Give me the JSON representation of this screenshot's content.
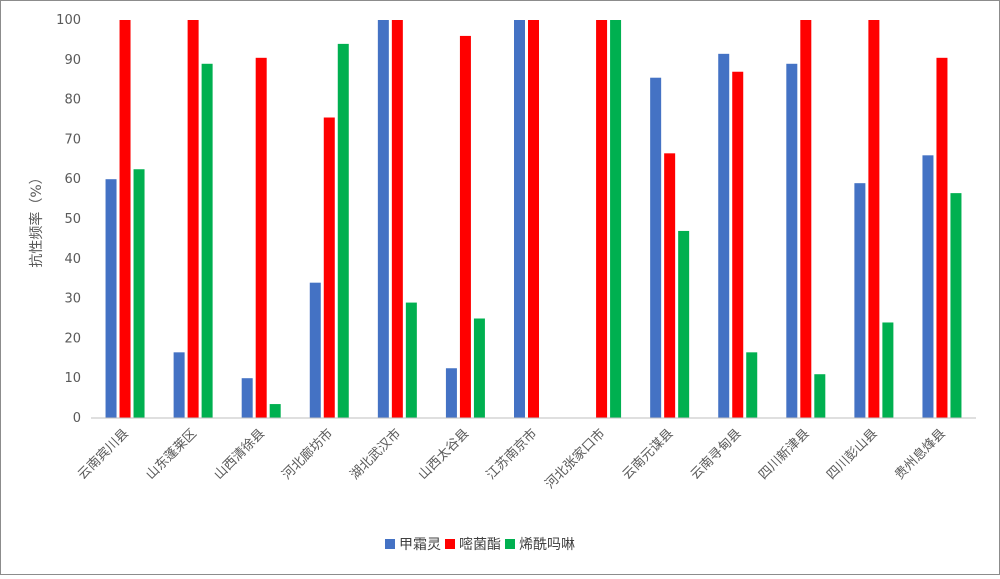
{
  "chart_data": {
    "type": "bar",
    "title": "",
    "xlabel": "",
    "ylabel": "抗性频率（%）",
    "ylim": [
      0,
      100
    ],
    "yticks": [
      0,
      10,
      20,
      30,
      40,
      50,
      60,
      70,
      80,
      90,
      100
    ],
    "grid": false,
    "legend_position": "bottom",
    "categories": [
      "云南宾川县",
      "山东蓬莱区",
      "山西清徐县",
      "河北廊坊市",
      "湖北武汉市",
      "山西太谷县",
      "江苏南京市",
      "河北张家口市",
      "云南元谋县",
      "云南寻甸县",
      "四川新津县",
      "四川彭山县",
      "贵州息烽县"
    ],
    "series": [
      {
        "name": "甲霜灵",
        "color": "#4472c4",
        "values": [
          60,
          16.5,
          10,
          34,
          100,
          12.5,
          100,
          0,
          85.5,
          91.5,
          89,
          59,
          66
        ]
      },
      {
        "name": "嘧菌酯",
        "color": "#ff0000",
        "values": [
          100,
          100,
          90.5,
          75.5,
          100,
          96,
          100,
          100,
          66.5,
          87,
          100,
          100,
          90.5
        ]
      },
      {
        "name": "烯酰吗啉",
        "color": "#00b050",
        "values": [
          62.5,
          89,
          3.5,
          94,
          29,
          25,
          0,
          100,
          47,
          16.5,
          11,
          24,
          56.5
        ]
      }
    ]
  }
}
